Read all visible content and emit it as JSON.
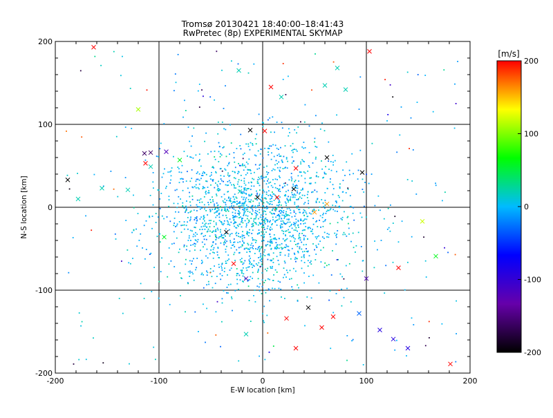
{
  "chart_data": {
    "type": "scatter",
    "title": "Tromsø 20130421 18:40:00–18:41:43",
    "subtitle": "RwPretec (8p) EXPERIMENTAL SKYMAP",
    "xlabel": "E-W location [km]",
    "ylabel": "N-S location [km]",
    "xlim": [
      -200,
      200
    ],
    "ylim": [
      -200,
      200
    ],
    "xticks": [
      -200,
      -100,
      0,
      100,
      200
    ],
    "yticks": [
      -200,
      -100,
      0,
      100,
      200
    ],
    "xtick_labels": [
      "-200",
      "-100",
      "0",
      "100",
      "200"
    ],
    "ytick_labels": [
      "-200",
      "-100",
      "0",
      "100",
      "200"
    ],
    "grid": true,
    "colorbar": {
      "label": "[m/s]",
      "range": [
        -200,
        200
      ],
      "ticks": [
        200,
        100,
        0,
        -100,
        -200
      ],
      "tick_labels": [
        "200",
        "100",
        "0",
        "-100",
        "-200"
      ],
      "stops": [
        "#000000",
        "#6600aa",
        "#0000ff",
        "#00bbff",
        "#00ff00",
        "#ffff00",
        "#ff0000"
      ]
    },
    "note": "Dense cloud of small green/cyan points centred near (-5,-10) km; crosses are outlier detections. Values below are estimated.",
    "crosses": [
      {
        "x": -163,
        "y": 193,
        "v": 200
      },
      {
        "x": 103,
        "y": 188,
        "v": 200
      },
      {
        "x": -120,
        "y": 118,
        "v": 110
      },
      {
        "x": -23,
        "y": 165,
        "v": 20
      },
      {
        "x": 8,
        "y": 145,
        "v": 200
      },
      {
        "x": 60,
        "y": 147,
        "v": 20
      },
      {
        "x": 72,
        "y": 168,
        "v": 20
      },
      {
        "x": 80,
        "y": 142,
        "v": 20
      },
      {
        "x": 18,
        "y": 133,
        "v": 20
      },
      {
        "x": -12,
        "y": 93,
        "v": -200
      },
      {
        "x": 2,
        "y": 92,
        "v": 200
      },
      {
        "x": 62,
        "y": 60,
        "v": -200
      },
      {
        "x": 96,
        "y": 42,
        "v": -200
      },
      {
        "x": -114,
        "y": 65,
        "v": -160
      },
      {
        "x": -108,
        "y": 66,
        "v": -160
      },
      {
        "x": -93,
        "y": 67,
        "v": -120
      },
      {
        "x": -113,
        "y": 53,
        "v": 200
      },
      {
        "x": -108,
        "y": 49,
        "v": 20
      },
      {
        "x": -188,
        "y": 33,
        "v": -200
      },
      {
        "x": -155,
        "y": 23,
        "v": 20
      },
      {
        "x": -178,
        "y": 10,
        "v": 20
      },
      {
        "x": -130,
        "y": 21,
        "v": 20
      },
      {
        "x": 32,
        "y": 47,
        "v": 200
      },
      {
        "x": 30,
        "y": 22,
        "v": -200
      },
      {
        "x": 14,
        "y": 12,
        "v": 200
      },
      {
        "x": -22,
        "y": 19,
        "v": 20
      },
      {
        "x": -5,
        "y": 12,
        "v": -200
      },
      {
        "x": 50,
        "y": -6,
        "v": 160
      },
      {
        "x": 62,
        "y": 4,
        "v": 160
      },
      {
        "x": -35,
        "y": -30,
        "v": -200
      },
      {
        "x": -28,
        "y": -68,
        "v": 200
      },
      {
        "x": 154,
        "y": -17,
        "v": 120
      },
      {
        "x": 167,
        "y": -59,
        "v": 60
      },
      {
        "x": 131,
        "y": -73,
        "v": 200
      },
      {
        "x": 100,
        "y": -86,
        "v": -120
      },
      {
        "x": -16,
        "y": -86,
        "v": -120
      },
      {
        "x": 44,
        "y": -121,
        "v": -200
      },
      {
        "x": 23,
        "y": -134,
        "v": 200
      },
      {
        "x": 68,
        "y": -132,
        "v": 200
      },
      {
        "x": 57,
        "y": -145,
        "v": 200
      },
      {
        "x": 32,
        "y": -170,
        "v": 200
      },
      {
        "x": -16,
        "y": -153,
        "v": 20
      },
      {
        "x": 113,
        "y": -148,
        "v": -90
      },
      {
        "x": 126,
        "y": -159,
        "v": -90
      },
      {
        "x": 140,
        "y": -170,
        "v": -90
      },
      {
        "x": 93,
        "y": -128,
        "v": -30
      },
      {
        "x": 181,
        "y": -189,
        "v": 200
      },
      {
        "x": -95,
        "y": -36,
        "v": 60
      },
      {
        "x": -80,
        "y": 57,
        "v": 60
      }
    ]
  }
}
